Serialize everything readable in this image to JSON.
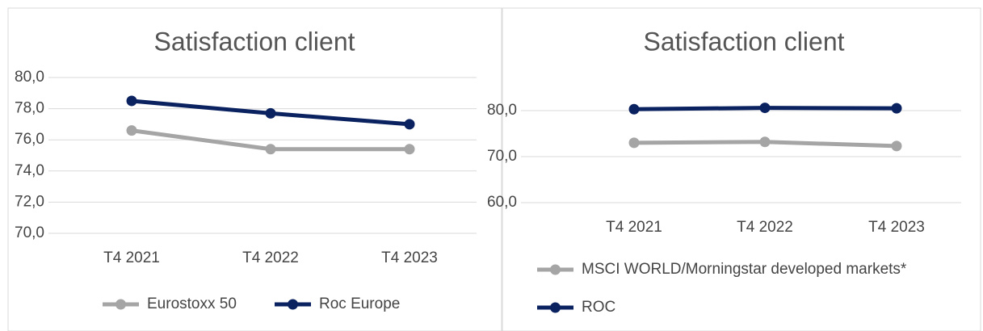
{
  "chart_data": [
    {
      "type": "line",
      "title": "Satisfaction client",
      "categories": [
        "T4 2021",
        "T4 2022",
        "T4 2023"
      ],
      "series": [
        {
          "name": "Eurostoxx 50",
          "color": "#a5a5a5",
          "values": [
            76.6,
            75.4,
            75.4
          ]
        },
        {
          "name": "Roc Europe",
          "color": "#0b2260",
          "values": [
            78.5,
            77.7,
            77.0
          ]
        }
      ],
      "ylim": [
        70,
        80
      ],
      "yticks": [
        {
          "value": 70,
          "label": "70,0"
        },
        {
          "value": 72,
          "label": "72,0"
        },
        {
          "value": 74,
          "label": "74,0"
        },
        {
          "value": 76,
          "label": "76,0"
        },
        {
          "value": 78,
          "label": "78,0"
        },
        {
          "value": 80,
          "label": "80,0"
        }
      ],
      "grid": true,
      "legend": "bottom"
    },
    {
      "type": "line",
      "title": "Satisfaction client",
      "categories": [
        "T4 2021",
        "T4 2022",
        "T4 2023"
      ],
      "series": [
        {
          "name": "MSCI WORLD/Morningstar developed markets*",
          "color": "#a5a5a5",
          "values": [
            73.0,
            73.2,
            72.3
          ]
        },
        {
          "name": "ROC",
          "color": "#0b2260",
          "values": [
            80.3,
            80.6,
            80.5
          ]
        }
      ],
      "ylim": [
        60,
        80
      ],
      "yticks": [
        {
          "value": 60,
          "label": "60,0"
        },
        {
          "value": 70,
          "label": "70,0"
        },
        {
          "value": 80,
          "label": "80,0"
        }
      ],
      "grid": true,
      "legend": "bottom"
    }
  ]
}
